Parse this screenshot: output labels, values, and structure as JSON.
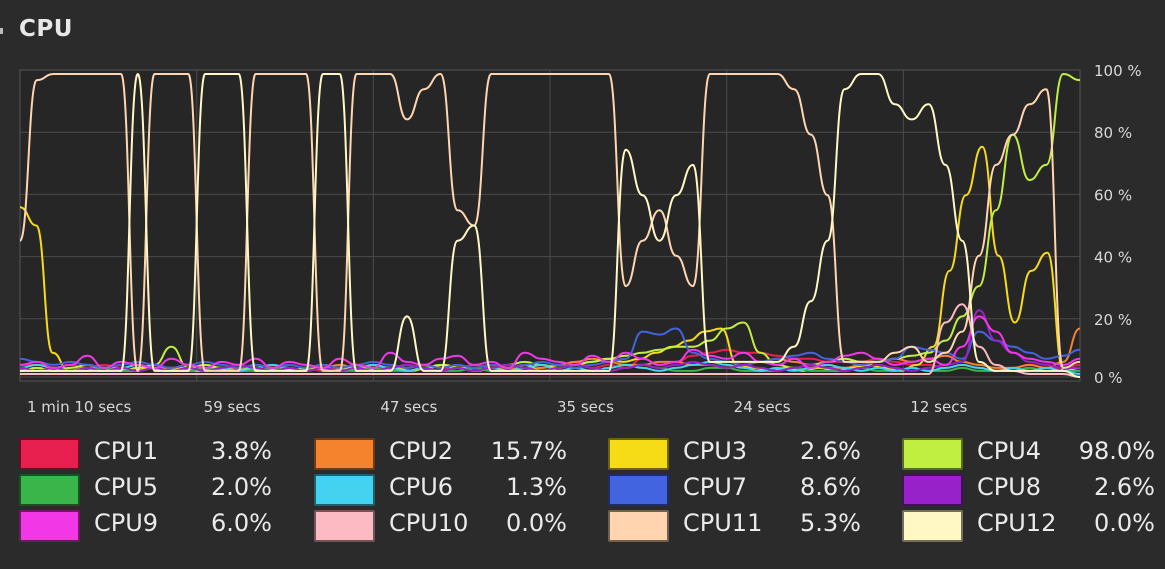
{
  "section": {
    "title": "CPU"
  },
  "chart_data": {
    "type": "line",
    "x_ticks": [
      "1 min 10 secs",
      "59 secs",
      "47 secs",
      "35 secs",
      "24 secs",
      "12 secs"
    ],
    "y_ticks": [
      "100 %",
      "80 %",
      "60 %",
      "40 %",
      "20 %",
      "0 %"
    ],
    "ylim": [
      0,
      100
    ],
    "grid": true,
    "legend_position": "bottom",
    "series": [
      {
        "name": "CPU1",
        "value_label": "3.8%",
        "color": "#e8204f",
        "values": [
          4,
          4,
          3,
          4,
          3,
          4,
          3,
          4,
          3,
          3,
          4,
          3,
          2,
          3,
          4,
          3,
          4,
          3,
          2,
          3,
          4,
          3,
          3,
          3,
          4,
          3,
          3,
          4,
          3,
          3,
          4,
          3,
          4,
          5,
          3,
          4,
          3,
          6,
          4,
          5,
          7,
          8,
          9,
          8,
          8,
          7,
          6,
          6,
          5,
          5,
          5,
          6,
          5,
          4,
          4,
          3,
          4,
          3,
          2,
          3,
          4,
          3,
          3,
          4
        ]
      },
      {
        "name": "CPU2",
        "value_label": "15.7%",
        "color": "#f5832e",
        "values": [
          2,
          3,
          2,
          2,
          3,
          3,
          2,
          2,
          3,
          3,
          2,
          2,
          3,
          3,
          2,
          3,
          2,
          2,
          3,
          4,
          3,
          2,
          3,
          4,
          3,
          2,
          3,
          3,
          4,
          3,
          2,
          3,
          4,
          5,
          6,
          5,
          4,
          4,
          5,
          5,
          4,
          4,
          3,
          4,
          5,
          6,
          5,
          4,
          3,
          3,
          4,
          5,
          6,
          5,
          6,
          7,
          5,
          4,
          3,
          3,
          4,
          3,
          5,
          16
        ]
      },
      {
        "name": "CPU3",
        "value_label": "2.6%",
        "color": "#f6dc16",
        "values": [
          56,
          50,
          8,
          2,
          3,
          2,
          3,
          2,
          3,
          2,
          3,
          2,
          3,
          2,
          3,
          2,
          3,
          2,
          3,
          2,
          3,
          3,
          2,
          3,
          2,
          3,
          4,
          3,
          2,
          3,
          2,
          4,
          2,
          3,
          4,
          5,
          6,
          5,
          6,
          8,
          10,
          12,
          15,
          16,
          4,
          3,
          2,
          3,
          2,
          3,
          2,
          3,
          4,
          3,
          2,
          4,
          10,
          35,
          60,
          76,
          40,
          18,
          35,
          41,
          2,
          3
        ]
      },
      {
        "name": "CPU4",
        "value_label": "98.0%",
        "color": "#c0ef41",
        "values": [
          2,
          3,
          2,
          3,
          4,
          3,
          2,
          3,
          4,
          10,
          3,
          4,
          3,
          2,
          4,
          3,
          2,
          3,
          4,
          3,
          2,
          4,
          3,
          2,
          3,
          4,
          3,
          2,
          3,
          4,
          5,
          4,
          3,
          4,
          5,
          6,
          7,
          8,
          9,
          10,
          10,
          12,
          16,
          18,
          8,
          4,
          3,
          4,
          5,
          6,
          5,
          5,
          6,
          7,
          8,
          12,
          20,
          30,
          55,
          80,
          65,
          70,
          100,
          98
        ]
      },
      {
        "name": "CPU5",
        "value_label": "2.0%",
        "color": "#3ab54a",
        "values": [
          2,
          2,
          3,
          2,
          2,
          3,
          2,
          2,
          3,
          2,
          2,
          3,
          2,
          2,
          2,
          3,
          2,
          2,
          3,
          2,
          2,
          3,
          2,
          2,
          3,
          2,
          2,
          3,
          2,
          2,
          3,
          2,
          2,
          3,
          2,
          2,
          3,
          4,
          3,
          2,
          2,
          3,
          3,
          2,
          2,
          2,
          3,
          2,
          2,
          2,
          3,
          2,
          2,
          3,
          2,
          2,
          3,
          2,
          2,
          2,
          3,
          2,
          2,
          2
        ]
      },
      {
        "name": "CPU6",
        "value_label": "1.3%",
        "color": "#43d3f0",
        "values": [
          3,
          4,
          3,
          2,
          3,
          2,
          3,
          4,
          3,
          2,
          3,
          2,
          3,
          2,
          3,
          4,
          3,
          2,
          3,
          2,
          3,
          4,
          3,
          2,
          3,
          2,
          3,
          2,
          3,
          2,
          3,
          4,
          2,
          3,
          2,
          3,
          4,
          3,
          2,
          3,
          4,
          5,
          4,
          3,
          2,
          3,
          2,
          3,
          4,
          3,
          2,
          3,
          2,
          3,
          2,
          3,
          4,
          3,
          2,
          3,
          2,
          3,
          2,
          1
        ]
      },
      {
        "name": "CPU7",
        "value_label": "8.6%",
        "color": "#4264e0",
        "values": [
          6,
          5,
          4,
          5,
          4,
          3,
          4,
          5,
          4,
          3,
          4,
          5,
          4,
          3,
          4,
          3,
          4,
          3,
          4,
          3,
          4,
          5,
          4,
          3,
          4,
          3,
          4,
          3,
          4,
          3,
          4,
          5,
          4,
          3,
          4,
          5,
          6,
          15,
          14,
          16,
          8,
          6,
          5,
          4,
          5,
          6,
          7,
          8,
          6,
          5,
          4,
          5,
          6,
          10,
          9,
          8,
          6,
          15,
          12,
          10,
          8,
          6,
          7,
          9
        ]
      },
      {
        "name": "CPU8",
        "value_label": "2.6%",
        "color": "#9822c9",
        "values": [
          3,
          2,
          3,
          2,
          3,
          2,
          3,
          2,
          3,
          2,
          3,
          2,
          3,
          4,
          3,
          2,
          3,
          2,
          3,
          2,
          3,
          2,
          3,
          4,
          3,
          2,
          3,
          2,
          3,
          4,
          3,
          2,
          3,
          4,
          3,
          2,
          3,
          4,
          3,
          4,
          5,
          4,
          3,
          4,
          3,
          2,
          3,
          4,
          3,
          2,
          3,
          4,
          3,
          2,
          3,
          4,
          5,
          22,
          12,
          8,
          5,
          4,
          3,
          3
        ]
      },
      {
        "name": "CPU9",
        "value_label": "6.0%",
        "color": "#f137e6",
        "values": [
          4,
          5,
          3,
          4,
          7,
          3,
          5,
          4,
          3,
          6,
          4,
          3,
          5,
          4,
          6,
          3,
          5,
          4,
          3,
          6,
          4,
          3,
          8,
          5,
          4,
          6,
          7,
          4,
          5,
          3,
          8,
          6,
          5,
          4,
          7,
          5,
          8,
          6,
          4,
          5,
          9,
          7,
          6,
          8,
          5,
          4,
          6,
          3,
          5,
          7,
          8,
          6,
          4,
          5,
          6,
          4,
          10,
          20,
          15,
          8,
          6,
          5,
          4,
          6
        ]
      },
      {
        "name": "CPU10",
        "value_label": "0.0%",
        "color": "#fdbac2",
        "values": [
          1,
          1,
          1,
          1,
          1,
          1,
          1,
          1,
          1,
          1,
          1,
          1,
          1,
          1,
          1,
          1,
          1,
          1,
          1,
          1,
          1,
          1,
          1,
          1,
          1,
          1,
          1,
          1,
          1,
          1,
          1,
          1,
          1,
          1,
          1,
          1,
          1,
          1,
          1,
          1,
          1,
          1,
          1,
          1,
          1,
          1,
          1,
          1,
          1,
          1,
          1,
          1,
          1,
          1,
          1,
          18,
          24,
          10,
          4,
          2,
          1,
          1,
          1,
          0
        ]
      },
      {
        "name": "CPU11",
        "value_label": "5.3%",
        "color": "#ffd5b0",
        "values": [
          45,
          98,
          100,
          100,
          100,
          100,
          100,
          2,
          100,
          100,
          100,
          2,
          2,
          2,
          100,
          100,
          100,
          100,
          2,
          2,
          100,
          100,
          100,
          85,
          95,
          100,
          55,
          50,
          100,
          100,
          100,
          100,
          100,
          100,
          100,
          100,
          30,
          45,
          55,
          40,
          30,
          100,
          100,
          100,
          100,
          100,
          95,
          80,
          60,
          5,
          5,
          5,
          8,
          10,
          5,
          8,
          15,
          40,
          70,
          80,
          90,
          95,
          3,
          5
        ]
      },
      {
        "name": "CPU12",
        "value_label": "0.0%",
        "color": "#fff8c5",
        "values": [
          2,
          2,
          2,
          2,
          2,
          2,
          2,
          100,
          2,
          2,
          2,
          100,
          100,
          100,
          2,
          2,
          2,
          2,
          100,
          100,
          2,
          2,
          2,
          20,
          2,
          2,
          45,
          50,
          2,
          2,
          2,
          2,
          2,
          2,
          2,
          2,
          75,
          60,
          45,
          60,
          70,
          5,
          5,
          5,
          5,
          5,
          10,
          25,
          45,
          95,
          100,
          100,
          90,
          85,
          90,
          70,
          45,
          5,
          2,
          2,
          2,
          2,
          2,
          0
        ]
      }
    ]
  }
}
